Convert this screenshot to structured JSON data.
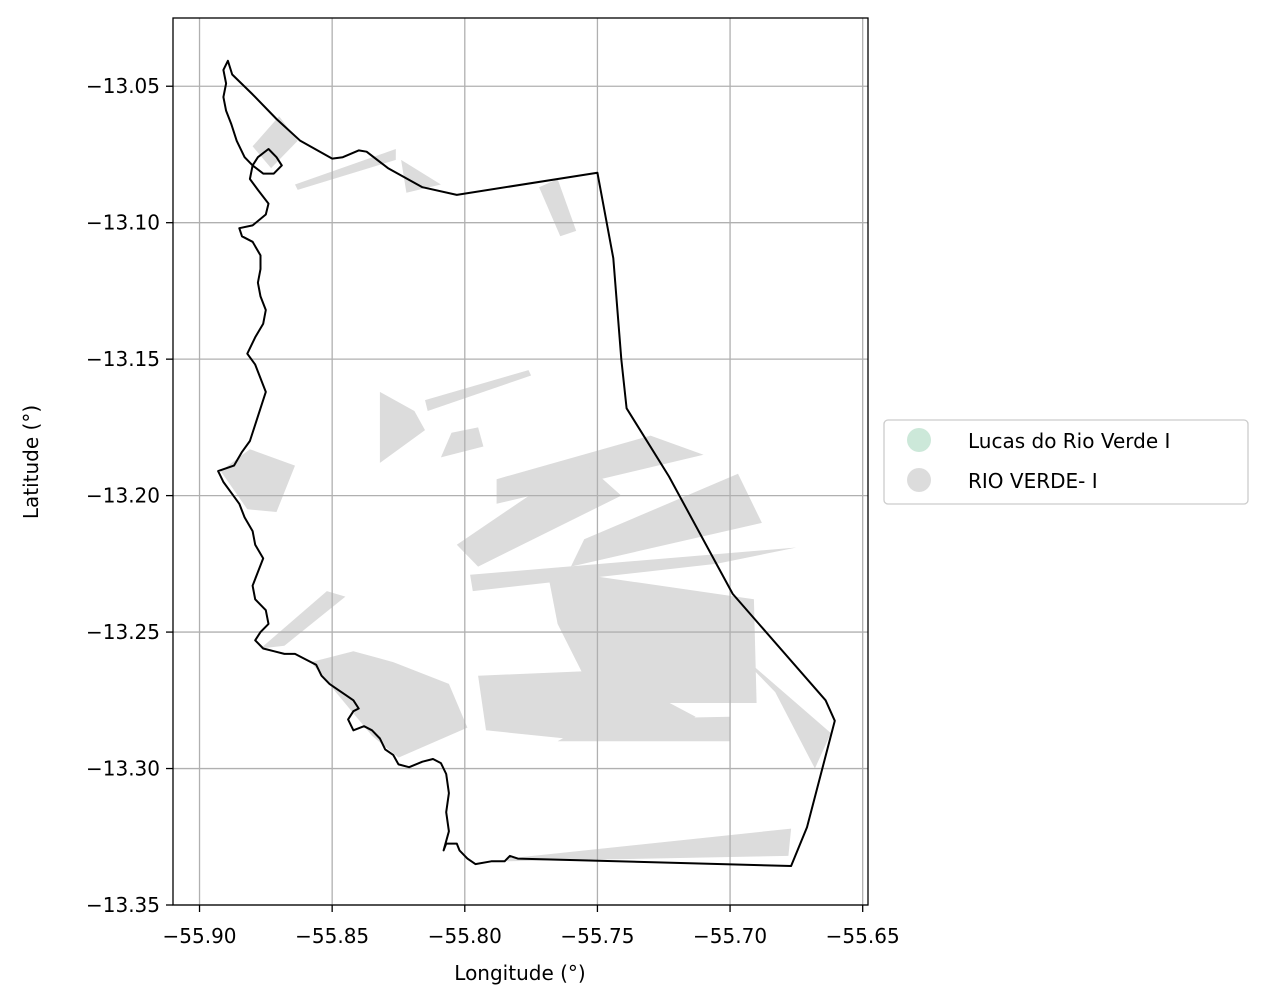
{
  "map": {
    "x_label": "Longitude (°)",
    "y_label": "Latitude (°)",
    "x_ticks": [
      {
        "value": -55.9,
        "label": "−55.90"
      },
      {
        "value": -55.85,
        "label": "−55.85"
      },
      {
        "value": -55.8,
        "label": "−55.80"
      },
      {
        "value": -55.75,
        "label": "−55.75"
      },
      {
        "value": -55.7,
        "label": "−55.70"
      },
      {
        "value": -55.65,
        "label": "−55.65"
      }
    ],
    "y_ticks": [
      {
        "value": -13.05,
        "label": "−13.05"
      },
      {
        "value": -13.1,
        "label": "−13.10"
      },
      {
        "value": -13.15,
        "label": "−13.15"
      },
      {
        "value": -13.2,
        "label": "−13.20"
      },
      {
        "value": -13.25,
        "label": "−13.25"
      },
      {
        "value": -13.3,
        "label": "−13.30"
      },
      {
        "value": -13.35,
        "label": "−13.35"
      }
    ],
    "x_range": [
      -55.91,
      -55.648
    ],
    "y_range": [
      -13.35,
      -13.025
    ],
    "grid": true,
    "legend_position": "right",
    "legend": [
      {
        "label": "Lucas do Rio Verde I",
        "color": "#cce8d9"
      },
      {
        "label": "RIO VERDE- I",
        "color": "#dcdcdc"
      }
    ],
    "boundary_color": "#000000",
    "fill_color": "#dcdcdc",
    "boundary": [
      [
        -55.8893,
        -13.0407
      ],
      [
        -55.8877,
        -13.0457
      ],
      [
        -55.88,
        -13.053
      ],
      [
        -55.871,
        -13.062
      ],
      [
        -55.862,
        -13.07
      ],
      [
        -55.85,
        -13.0765
      ],
      [
        -55.846,
        -13.076
      ],
      [
        -55.84,
        -13.0735
      ],
      [
        -55.837,
        -13.074
      ],
      [
        -55.829,
        -13.08
      ],
      [
        -55.816,
        -13.087
      ],
      [
        -55.803,
        -13.0898
      ],
      [
        -55.75,
        -13.0817
      ],
      [
        -55.744,
        -13.113
      ],
      [
        -55.741,
        -13.15
      ],
      [
        -55.739,
        -13.168
      ],
      [
        -55.723,
        -13.193
      ],
      [
        -55.699,
        -13.236
      ],
      [
        -55.664,
        -13.275
      ],
      [
        -55.6605,
        -13.2825
      ],
      [
        -55.671,
        -13.3215
      ],
      [
        -55.677,
        -13.3357
      ],
      [
        -55.78,
        -13.333
      ],
      [
        -55.783,
        -13.332
      ],
      [
        -55.785,
        -13.334
      ],
      [
        -55.79,
        -13.334
      ],
      [
        -55.796,
        -13.335
      ],
      [
        -55.799,
        -13.333
      ],
      [
        -55.802,
        -13.33
      ],
      [
        -55.803,
        -13.3275
      ],
      [
        -55.807,
        -13.3275
      ],
      [
        -55.808,
        -13.33
      ],
      [
        -55.806,
        -13.323
      ],
      [
        -55.807,
        -13.316
      ],
      [
        -55.806,
        -13.309
      ],
      [
        -55.807,
        -13.302
      ],
      [
        -55.809,
        -13.298
      ],
      [
        -55.812,
        -13.2965
      ],
      [
        -55.816,
        -13.2975
      ],
      [
        -55.821,
        -13.2995
      ],
      [
        -55.825,
        -13.2985
      ],
      [
        -55.827,
        -13.295
      ],
      [
        -55.83,
        -13.293
      ],
      [
        -55.832,
        -13.289
      ],
      [
        -55.835,
        -13.286
      ],
      [
        -55.838,
        -13.2845
      ],
      [
        -55.842,
        -13.286
      ],
      [
        -55.844,
        -13.282
      ],
      [
        -55.842,
        -13.279
      ],
      [
        -55.84,
        -13.278
      ],
      [
        -55.842,
        -13.275
      ],
      [
        -55.845,
        -13.273
      ],
      [
        -55.848,
        -13.271
      ],
      [
        -55.851,
        -13.269
      ],
      [
        -55.854,
        -13.266
      ],
      [
        -55.856,
        -13.262
      ],
      [
        -55.86,
        -13.26
      ],
      [
        -55.864,
        -13.258
      ],
      [
        -55.868,
        -13.258
      ],
      [
        -55.872,
        -13.257
      ],
      [
        -55.876,
        -13.256
      ],
      [
        -55.879,
        -13.253
      ],
      [
        -55.877,
        -13.25
      ],
      [
        -55.874,
        -13.247
      ],
      [
        -55.875,
        -13.242
      ],
      [
        -55.879,
        -13.238
      ],
      [
        -55.88,
        -13.233
      ],
      [
        -55.878,
        -13.228
      ],
      [
        -55.876,
        -13.223
      ],
      [
        -55.879,
        -13.218
      ],
      [
        -55.88,
        -13.213
      ],
      [
        -55.883,
        -13.208
      ],
      [
        -55.885,
        -13.203
      ],
      [
        -55.888,
        -13.199
      ],
      [
        -55.891,
        -13.195
      ],
      [
        -55.893,
        -13.191
      ],
      [
        -55.887,
        -13.189
      ],
      [
        -55.884,
        -13.184
      ],
      [
        -55.881,
        -13.18
      ],
      [
        -55.879,
        -13.174
      ],
      [
        -55.877,
        -13.168
      ],
      [
        -55.875,
        -13.162
      ],
      [
        -55.877,
        -13.157
      ],
      [
        -55.879,
        -13.152
      ],
      [
        -55.882,
        -13.148
      ],
      [
        -55.879,
        -13.142
      ],
      [
        -55.876,
        -13.137
      ],
      [
        -55.875,
        -13.132
      ],
      [
        -55.877,
        -13.127
      ],
      [
        -55.878,
        -13.122
      ],
      [
        -55.877,
        -13.117
      ],
      [
        -55.877,
        -13.112
      ],
      [
        -55.88,
        -13.107
      ],
      [
        -55.884,
        -13.105
      ],
      [
        -55.885,
        -13.102
      ],
      [
        -55.88,
        -13.101
      ],
      [
        -55.875,
        -13.097
      ],
      [
        -55.874,
        -13.093
      ],
      [
        -55.878,
        -13.088
      ],
      [
        -55.881,
        -13.084
      ],
      [
        -55.88,
        -13.079
      ],
      [
        -55.878,
        -13.076
      ],
      [
        -55.874,
        -13.073
      ],
      [
        -55.871,
        -13.076
      ],
      [
        -55.869,
        -13.079
      ],
      [
        -55.872,
        -13.082
      ],
      [
        -55.876,
        -13.082
      ],
      [
        -55.88,
        -13.079
      ],
      [
        -55.883,
        -13.076
      ],
      [
        -55.886,
        -13.07
      ],
      [
        -55.888,
        -13.064
      ],
      [
        -55.89,
        -13.059
      ],
      [
        -55.891,
        -13.054
      ],
      [
        -55.89,
        -13.049
      ],
      [
        -55.891,
        -13.044
      ],
      [
        -55.8893,
        -13.0407
      ]
    ],
    "shapes": [
      [
        [
          -55.88,
          -13.072
        ],
        [
          -55.87,
          -13.061
        ],
        [
          -55.863,
          -13.07
        ],
        [
          -55.873,
          -13.08
        ]
      ],
      [
        [
          -55.864,
          -13.086
        ],
        [
          -55.826,
          -13.073
        ],
        [
          -55.826,
          -13.077
        ],
        [
          -55.863,
          -13.088
        ]
      ],
      [
        [
          -55.824,
          -13.077
        ],
        [
          -55.809,
          -13.086
        ],
        [
          -55.822,
          -13.089
        ]
      ],
      [
        [
          -55.772,
          -13.087
        ],
        [
          -55.765,
          -13.084
        ],
        [
          -55.758,
          -13.103
        ],
        [
          -55.764,
          -13.105
        ]
      ],
      [
        [
          -55.815,
          -13.165
        ],
        [
          -55.776,
          -13.154
        ],
        [
          -55.775,
          -13.156
        ],
        [
          -55.814,
          -13.169
        ]
      ],
      [
        [
          -55.832,
          -13.162
        ],
        [
          -55.819,
          -13.169
        ],
        [
          -55.815,
          -13.176
        ],
        [
          -55.832,
          -13.188
        ]
      ],
      [
        [
          -55.795,
          -13.175
        ],
        [
          -55.793,
          -13.182
        ],
        [
          -55.809,
          -13.186
        ],
        [
          -55.805,
          -13.177
        ]
      ],
      [
        [
          -55.73,
          -13.178
        ],
        [
          -55.71,
          -13.185
        ],
        [
          -55.788,
          -13.203
        ],
        [
          -55.788,
          -13.194
        ]
      ],
      [
        [
          -55.756,
          -13.187
        ],
        [
          -55.741,
          -13.2
        ],
        [
          -55.795,
          -13.226
        ],
        [
          -55.803,
          -13.218
        ]
      ],
      [
        [
          -55.892,
          -13.191
        ],
        [
          -55.881,
          -13.183
        ],
        [
          -55.864,
          -13.189
        ],
        [
          -55.871,
          -13.206
        ],
        [
          -55.882,
          -13.205
        ]
      ],
      [
        [
          -55.697,
          -13.192
        ],
        [
          -55.688,
          -13.21
        ],
        [
          -55.76,
          -13.226
        ],
        [
          -55.755,
          -13.216
        ]
      ],
      [
        [
          -55.705,
          -13.225
        ],
        [
          -55.675,
          -13.219
        ],
        [
          -55.798,
          -13.229
        ],
        [
          -55.797,
          -13.235
        ]
      ],
      [
        [
          -55.769,
          -13.227
        ],
        [
          -55.691,
          -13.238
        ],
        [
          -55.69,
          -13.276
        ],
        [
          -55.75,
          -13.276
        ],
        [
          -55.765,
          -13.247
        ]
      ],
      [
        [
          -55.71,
          -13.245
        ],
        [
          -55.683,
          -13.272
        ],
        [
          -55.668,
          -13.3
        ],
        [
          -55.662,
          -13.287
        ],
        [
          -55.7,
          -13.255
        ]
      ],
      [
        [
          -55.877,
          -13.256
        ],
        [
          -55.852,
          -13.235
        ],
        [
          -55.845,
          -13.237
        ],
        [
          -55.868,
          -13.255
        ]
      ],
      [
        [
          -55.858,
          -13.261
        ],
        [
          -55.842,
          -13.257
        ],
        [
          -55.827,
          -13.261
        ],
        [
          -55.806,
          -13.269
        ],
        [
          -55.799,
          -13.285
        ],
        [
          -55.825,
          -13.296
        ],
        [
          -55.835,
          -13.288
        ]
      ],
      [
        [
          -55.795,
          -13.266
        ],
        [
          -55.746,
          -13.264
        ],
        [
          -55.713,
          -13.281
        ],
        [
          -55.722,
          -13.286
        ],
        [
          -55.762,
          -13.289
        ],
        [
          -55.792,
          -13.286
        ]
      ],
      [
        [
          -55.75,
          -13.282
        ],
        [
          -55.7,
          -13.281
        ],
        [
          -55.7,
          -13.29
        ],
        [
          -55.765,
          -13.29
        ]
      ],
      [
        [
          -55.784,
          -13.333
        ],
        [
          -55.677,
          -13.322
        ],
        [
          -55.678,
          -13.332
        ],
        [
          -55.784,
          -13.334
        ]
      ]
    ]
  }
}
